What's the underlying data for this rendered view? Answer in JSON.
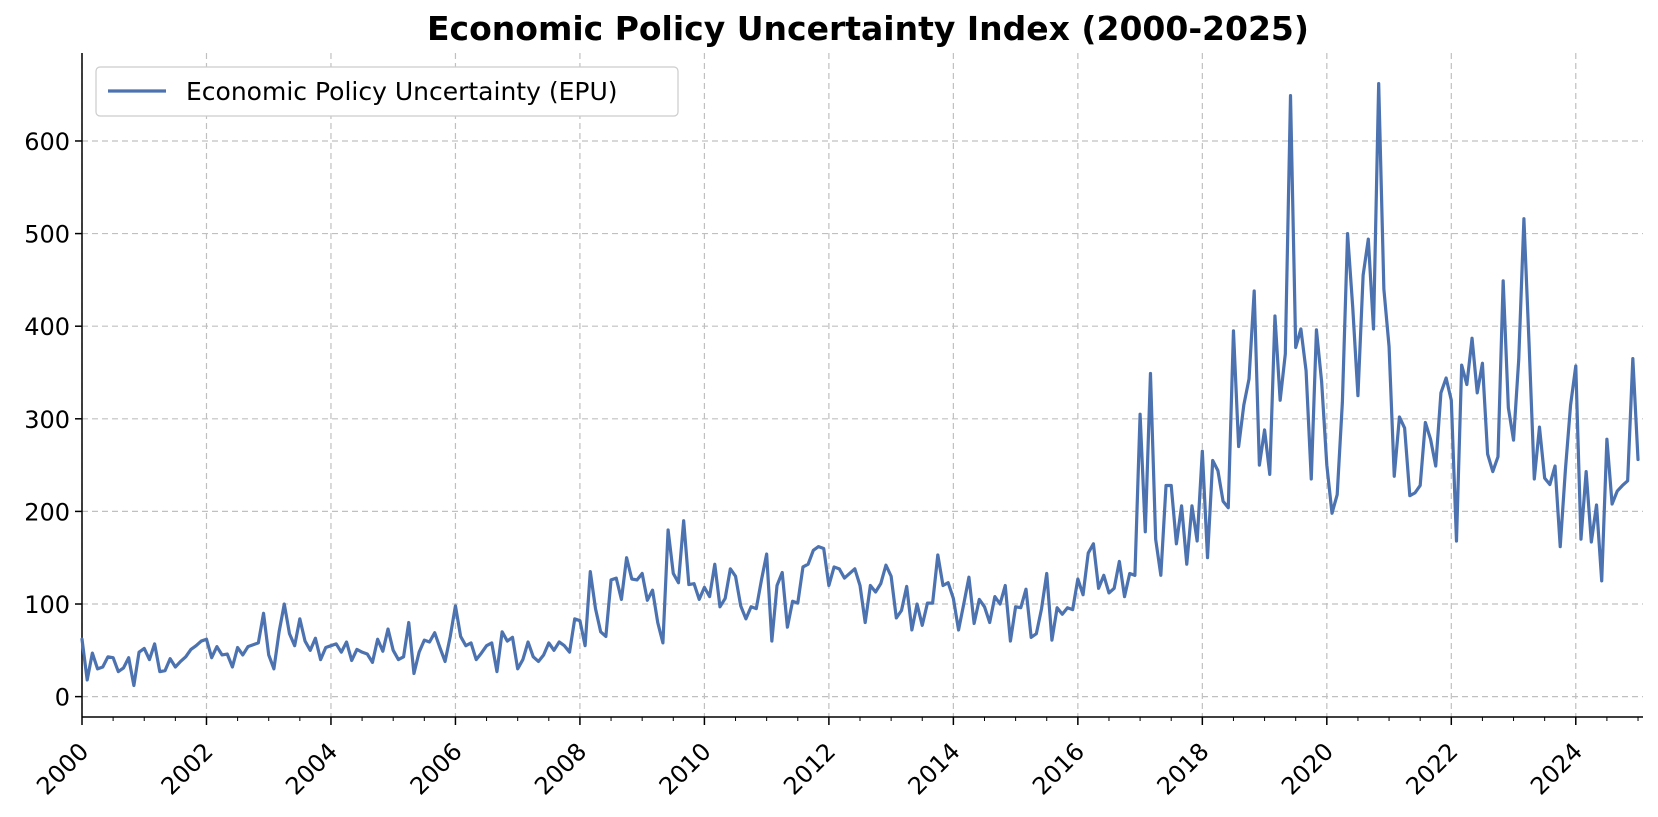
{
  "chart_data": {
    "type": "line",
    "title": "Economic Policy Uncertainty Index (2000-2025)",
    "xlabel": "",
    "ylabel": "",
    "xlim": [
      2000,
      2025.08
    ],
    "ylim": [
      -22,
      695
    ],
    "x_ticks": [
      "2000",
      "2002",
      "2004",
      "2006",
      "2008",
      "2010",
      "2012",
      "2014",
      "2016",
      "2018",
      "2020",
      "2022",
      "2024"
    ],
    "y_ticks": [
      "0",
      "100",
      "200",
      "300",
      "400",
      "500",
      "600"
    ],
    "grid": true,
    "legend_position": "top-left",
    "colors": {
      "line": "#4c72b0",
      "grid": "#c0c0c0",
      "axis": "#000000"
    },
    "series": [
      {
        "name": "Economic Policy Uncertainty (EPU)",
        "start_year": 2000,
        "step": "monthly",
        "values": [
          62,
          18,
          47,
          30,
          32,
          43,
          42,
          27,
          31,
          42,
          12,
          48,
          52,
          40,
          57,
          27,
          28,
          41,
          32,
          38,
          43,
          51,
          55,
          60,
          62,
          42,
          54,
          45,
          46,
          32,
          53,
          45,
          54,
          56,
          58,
          90,
          45,
          30,
          70,
          100,
          68,
          55,
          84,
          60,
          50,
          63,
          40,
          53,
          55,
          57,
          48,
          59,
          39,
          51,
          48,
          46,
          37,
          62,
          49,
          73,
          50,
          40,
          43,
          80,
          25,
          48,
          61,
          59,
          69,
          53,
          38,
          65,
          98,
          65,
          55,
          58,
          40,
          47,
          55,
          58,
          27,
          70,
          60,
          64,
          30,
          40,
          59,
          43,
          38,
          45,
          58,
          50,
          59,
          55,
          48,
          84,
          82,
          55,
          135,
          95,
          70,
          65,
          126,
          128,
          105,
          150,
          127,
          126,
          133,
          104,
          115,
          80,
          58,
          180,
          133,
          123,
          190,
          121,
          122,
          105,
          118,
          108,
          143,
          97,
          106,
          138,
          130,
          98,
          84,
          97,
          95,
          126,
          154,
          60,
          120,
          134,
          75,
          103,
          101,
          140,
          143,
          158,
          162,
          160,
          120,
          140,
          138,
          128,
          133,
          138,
          120,
          80,
          120,
          113,
          122,
          142,
          130,
          85,
          93,
          119,
          72,
          100,
          77,
          101,
          101,
          153,
          120,
          123,
          106,
          72,
          100,
          129,
          79,
          105,
          97,
          80,
          108,
          100,
          120,
          60,
          97,
          96,
          116,
          64,
          68,
          95,
          133,
          61,
          96,
          89,
          96,
          94,
          127,
          110,
          155,
          165,
          117,
          131,
          112,
          117,
          146,
          108,
          133,
          131,
          305,
          178,
          349,
          170,
          131,
          228,
          228,
          165,
          206,
          143,
          206,
          168,
          265,
          150,
          255,
          244,
          211,
          204,
          395,
          270,
          315,
          343,
          438,
          250,
          288,
          240,
          411,
          320,
          370,
          649,
          377,
          397,
          352,
          235,
          396,
          340,
          250,
          198,
          218,
          318,
          500,
          420,
          325,
          455,
          494,
          397,
          662,
          440,
          378,
          238,
          302,
          290,
          217,
          220,
          228,
          296,
          278,
          249,
          328,
          344,
          320,
          168,
          358,
          337,
          387,
          328,
          360,
          262,
          243,
          259,
          449,
          312,
          277,
          364,
          516,
          380,
          235,
          291,
          236,
          229,
          249,
          162,
          245,
          315,
          357,
          170,
          243,
          167,
          207,
          125,
          278,
          208,
          222,
          228,
          233,
          365,
          256
        ]
      }
    ]
  }
}
